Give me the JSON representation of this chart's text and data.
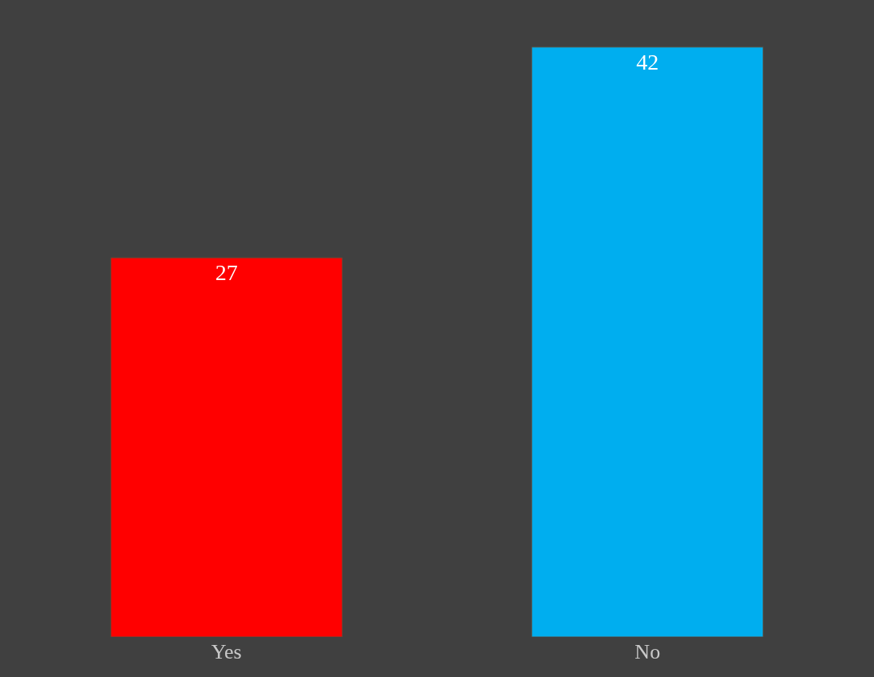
{
  "chart_data": {
    "type": "bar",
    "categories": [
      "Yes",
      "No"
    ],
    "values": [
      27,
      42
    ],
    "colors": [
      "#ff0000",
      "#00aeef"
    ],
    "data_labels": true
  }
}
